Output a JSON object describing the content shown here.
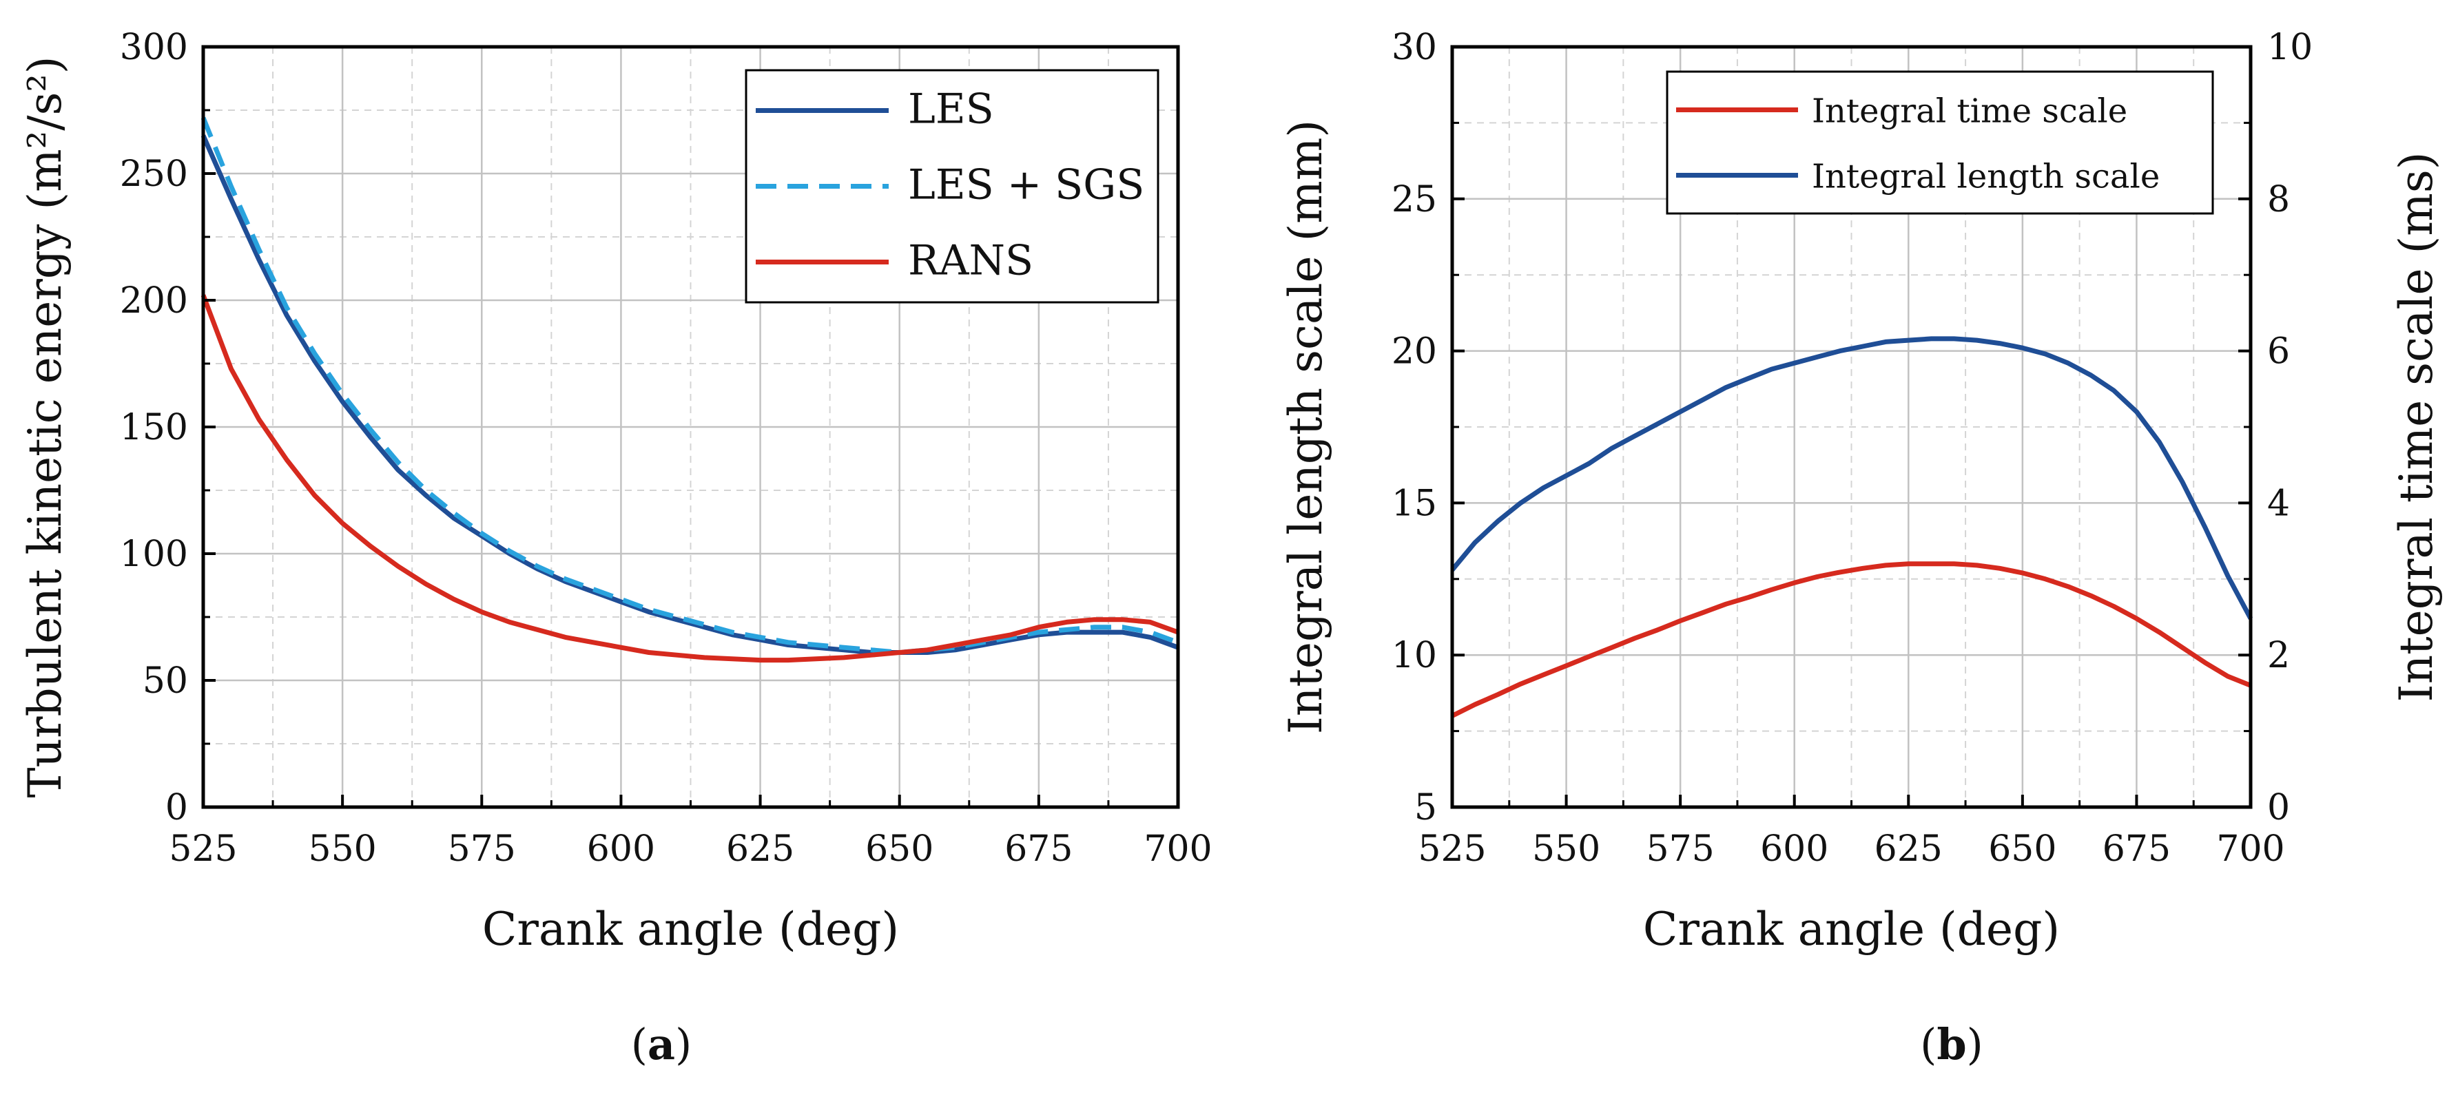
{
  "chart_data": [
    {
      "type": "line",
      "panel_label_open": "(",
      "panel_label": "a",
      "panel_label_close": ")",
      "xlabel": "Crank angle (deg)",
      "ylabel": "Turbulent kinetic energy (m²/s²)",
      "xlim": [
        525,
        700
      ],
      "ylim": [
        0,
        300
      ],
      "xticks": [
        "525",
        "550",
        "575",
        "600",
        "625",
        "650",
        "675",
        "700"
      ],
      "yticks": [
        "0",
        "50",
        "100",
        "150",
        "200",
        "250",
        "300"
      ],
      "grid": true,
      "legend_position": "top-right",
      "series": [
        {
          "name": "LES",
          "color": "#1f4e96",
          "dash": "solid",
          "x": [
            525,
            530,
            535,
            540,
            545,
            550,
            555,
            560,
            565,
            570,
            575,
            580,
            585,
            590,
            595,
            600,
            605,
            610,
            615,
            620,
            625,
            630,
            635,
            640,
            645,
            650,
            655,
            660,
            665,
            670,
            675,
            680,
            685,
            690,
            695,
            700
          ],
          "y": [
            265,
            240,
            216,
            194,
            176,
            160,
            146,
            133,
            123,
            114,
            107,
            100,
            94,
            89,
            85,
            81,
            77,
            74,
            71,
            68,
            66,
            64,
            63,
            62,
            61,
            61,
            61,
            62,
            64,
            66,
            68,
            69,
            69,
            69,
            67,
            63
          ]
        },
        {
          "name": "LES + SGS",
          "color": "#29a3de",
          "dash": "dashed",
          "x": [
            525,
            530,
            535,
            540,
            545,
            550,
            555,
            560,
            565,
            570,
            575,
            580,
            585,
            590,
            595,
            600,
            605,
            610,
            615,
            620,
            625,
            630,
            635,
            640,
            645,
            650,
            655,
            660,
            665,
            670,
            675,
            680,
            685,
            690,
            695,
            700
          ],
          "y": [
            272,
            245,
            220,
            197,
            179,
            163,
            149,
            136,
            125,
            116,
            108,
            101,
            95,
            90,
            86,
            82,
            78,
            75,
            72,
            69,
            67,
            65,
            64,
            63,
            62,
            61,
            62,
            63,
            65,
            67,
            69,
            70,
            71,
            71,
            69,
            65
          ]
        },
        {
          "name": "RANS",
          "color": "#d62a1e",
          "dash": "solid",
          "x": [
            525,
            530,
            535,
            540,
            545,
            550,
            555,
            560,
            565,
            570,
            575,
            580,
            585,
            590,
            595,
            600,
            605,
            610,
            615,
            620,
            625,
            630,
            635,
            640,
            645,
            650,
            655,
            660,
            665,
            670,
            675,
            680,
            685,
            690,
            695,
            700
          ],
          "y": [
            202,
            173,
            153,
            137,
            123,
            112,
            103,
            95,
            88,
            82,
            77,
            73,
            70,
            67,
            65,
            63,
            61,
            60,
            59,
            58.5,
            58,
            58,
            58.5,
            59,
            60,
            61,
            62,
            64,
            66,
            68,
            71,
            73,
            74,
            74,
            73,
            69
          ]
        }
      ]
    },
    {
      "type": "line",
      "panel_label_open": "(",
      "panel_label": "b",
      "panel_label_close": ")",
      "xlabel": "Crank angle (deg)",
      "ylabel": "Integral length scale (mm)",
      "ylabel_right": "Integral time scale (ms)",
      "xlim": [
        525,
        700
      ],
      "ylim": [
        5,
        30
      ],
      "ylim_right": [
        0,
        10
      ],
      "xticks": [
        "525",
        "550",
        "575",
        "600",
        "625",
        "650",
        "675",
        "700"
      ],
      "yticks": [
        "5",
        "10",
        "15",
        "20",
        "25",
        "30"
      ],
      "yticks_right": [
        "0",
        "2",
        "4",
        "6",
        "8",
        "10"
      ],
      "grid": true,
      "legend_position": "top-center",
      "series": [
        {
          "name": "Integral time scale",
          "color": "#d62a1e",
          "dash": "solid",
          "axis": "right",
          "x": [
            525,
            530,
            535,
            540,
            545,
            550,
            555,
            560,
            565,
            570,
            575,
            580,
            585,
            590,
            595,
            600,
            605,
            610,
            615,
            620,
            625,
            630,
            635,
            640,
            645,
            650,
            655,
            660,
            665,
            670,
            675,
            680,
            685,
            690,
            695,
            700
          ],
          "y": [
            1.2,
            1.35,
            1.48,
            1.62,
            1.74,
            1.86,
            1.98,
            2.1,
            2.22,
            2.33,
            2.45,
            2.56,
            2.67,
            2.76,
            2.86,
            2.95,
            3.03,
            3.09,
            3.14,
            3.18,
            3.2,
            3.2,
            3.2,
            3.18,
            3.14,
            3.08,
            3.0,
            2.9,
            2.78,
            2.64,
            2.48,
            2.3,
            2.1,
            1.9,
            1.72,
            1.6
          ]
        },
        {
          "name": "Integral length scale",
          "color": "#1f4e96",
          "dash": "solid",
          "axis": "left",
          "x": [
            525,
            530,
            535,
            540,
            545,
            550,
            555,
            560,
            565,
            570,
            575,
            580,
            585,
            590,
            595,
            600,
            605,
            610,
            615,
            620,
            625,
            630,
            635,
            640,
            645,
            650,
            655,
            660,
            665,
            670,
            675,
            680,
            685,
            690,
            695,
            700
          ],
          "y": [
            12.8,
            13.7,
            14.4,
            15.0,
            15.5,
            15.9,
            16.3,
            16.8,
            17.2,
            17.6,
            18.0,
            18.4,
            18.8,
            19.1,
            19.4,
            19.6,
            19.8,
            20.0,
            20.15,
            20.3,
            20.35,
            20.4,
            20.4,
            20.35,
            20.25,
            20.1,
            19.9,
            19.6,
            19.2,
            18.7,
            18.0,
            17.0,
            15.7,
            14.2,
            12.6,
            11.2
          ]
        }
      ]
    }
  ]
}
